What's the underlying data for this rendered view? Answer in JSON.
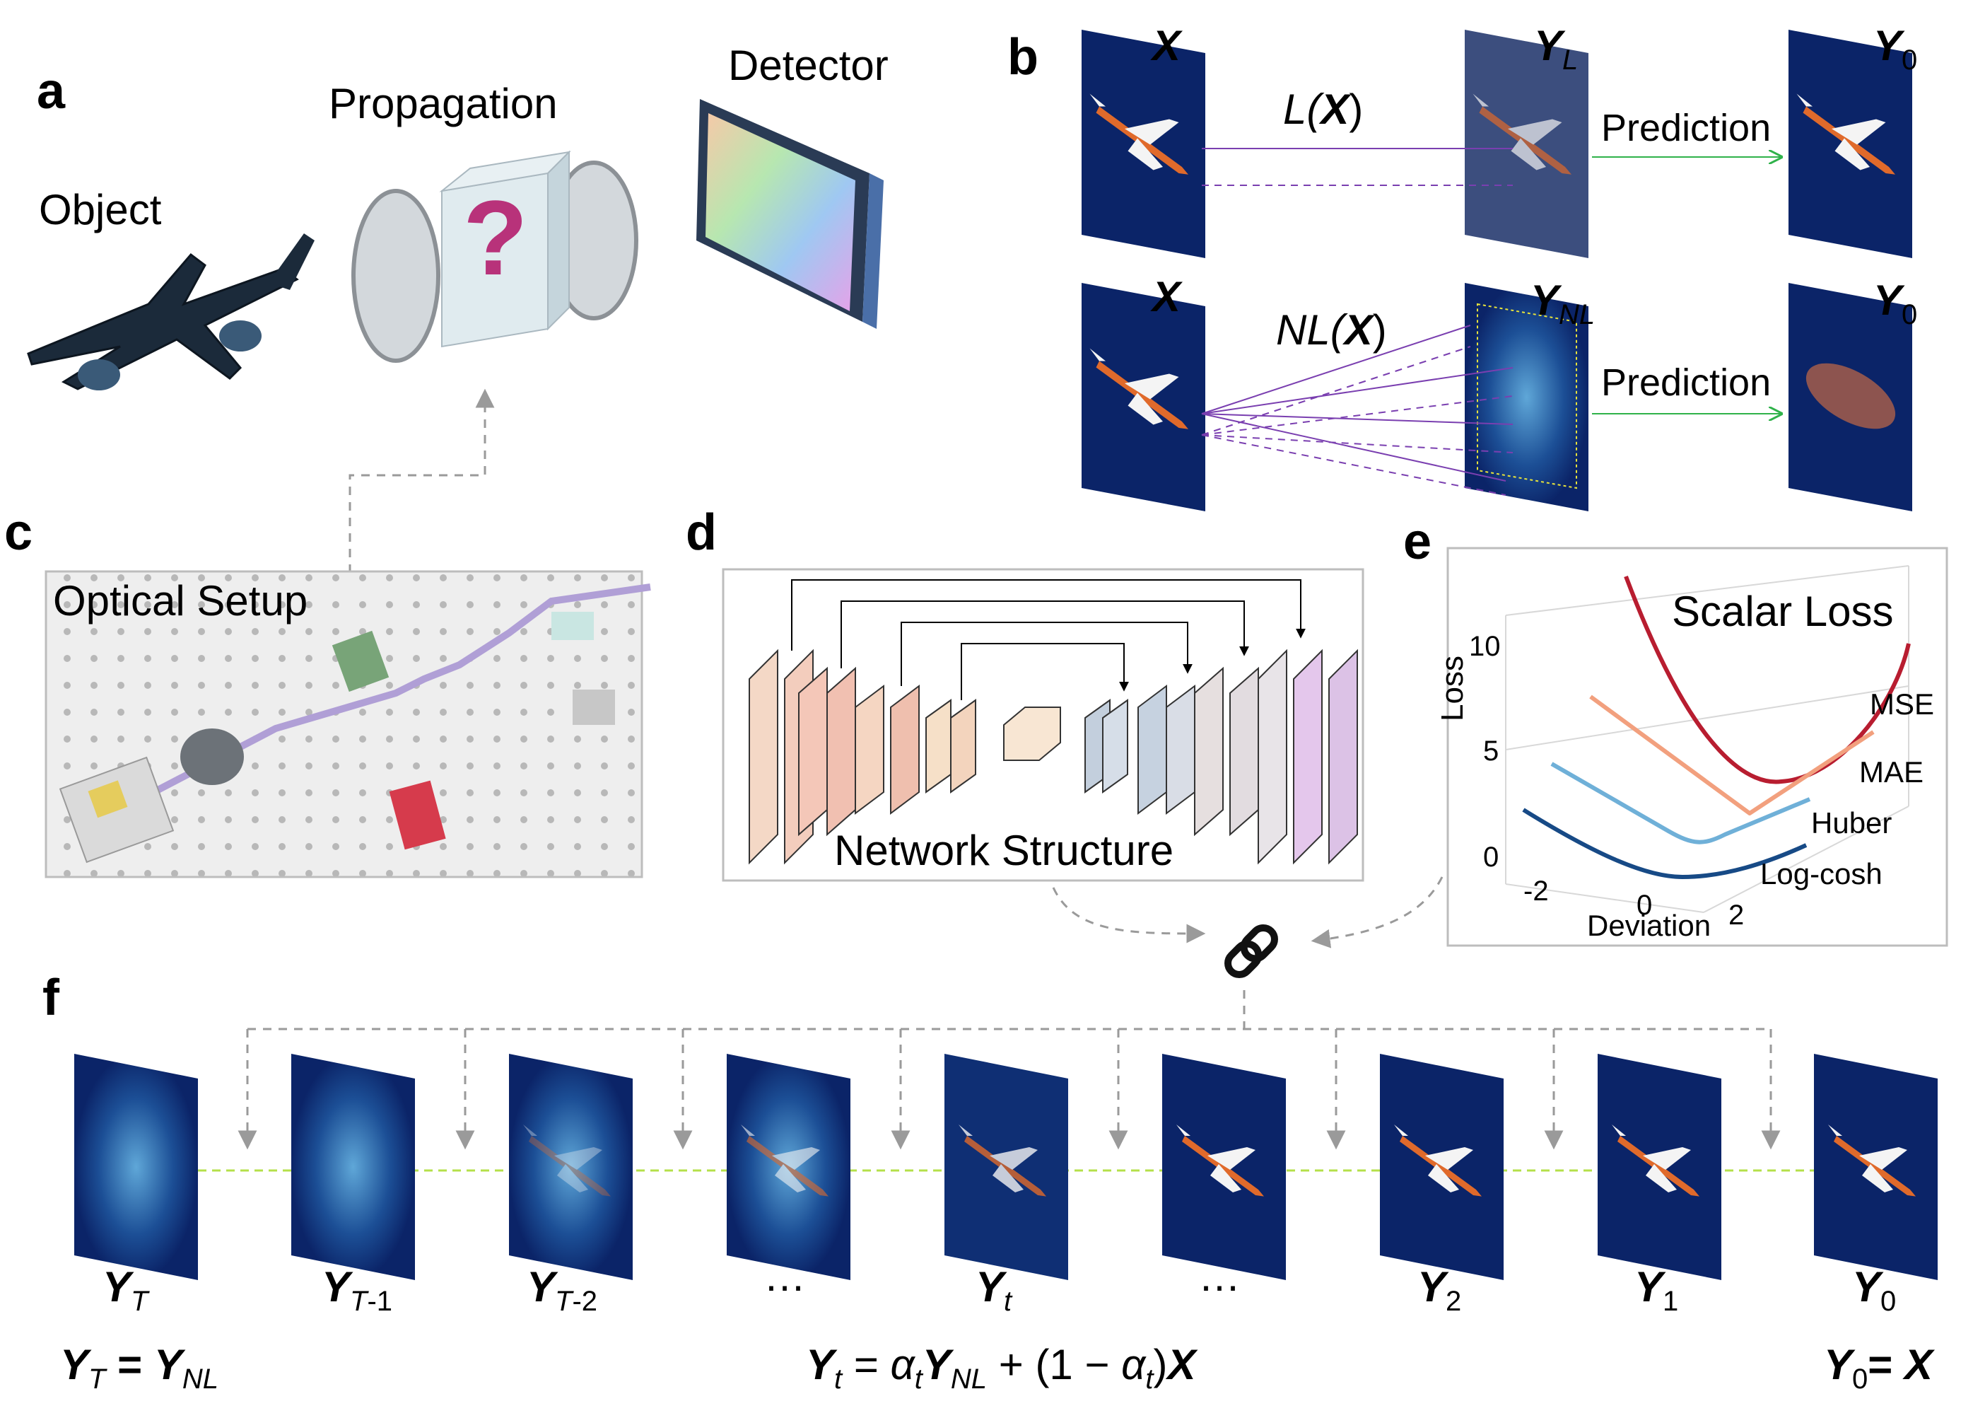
{
  "panels": {
    "a": {
      "label": "a",
      "object_text": "Object",
      "propagation_text": "Propagation",
      "propagation_symbol": "?",
      "detector_text": "Detector"
    },
    "b": {
      "label": "b",
      "row1": {
        "input": "X",
        "output": "Y",
        "output_sub": "L",
        "pred": "Y",
        "pred_sub": "0",
        "op_func": "L(",
        "op_var": "X",
        "op_close": ")",
        "arrow_text": "Prediction"
      },
      "row2": {
        "input": "X",
        "output": "Y",
        "output_sub": "NL",
        "pred": "Y",
        "pred_sub": "0",
        "op_func": "NL(",
        "op_var": "X",
        "op_close": ")",
        "arrow_text": "Prediction"
      }
    },
    "c": {
      "label": "c",
      "title": "Optical Setup"
    },
    "d": {
      "label": "d",
      "title": "Network Structure"
    },
    "e": {
      "label": "e",
      "title": "Scalar Loss",
      "ylabel": "Loss",
      "xlabel": "Deviation",
      "yticks": [
        "10",
        "5",
        "0"
      ],
      "xticks": [
        "-2",
        "0",
        "2"
      ],
      "legend": [
        "MSE",
        "MAE",
        "Huber",
        "Log-cosh"
      ]
    },
    "f": {
      "label": "f",
      "frames": [
        {
          "base": "Y",
          "sub": "T",
          "upright": false
        },
        {
          "base": "Y",
          "sub": "T",
          "sub2": "-1"
        },
        {
          "base": "Y",
          "sub": "T",
          "sub2": "-2"
        },
        {
          "ellipsis": "…"
        },
        {
          "base": "Y",
          "sub": "t"
        },
        {
          "ellipsis": "…"
        },
        {
          "base": "Y",
          "sub2": "2"
        },
        {
          "base": "Y",
          "sub2": "1"
        },
        {
          "base": "Y",
          "sub2": "0"
        }
      ],
      "eq_left": {
        "a": "Y",
        "a_sub": "T",
        "eq": " = ",
        "b": "Y",
        "b_sub": "NL"
      },
      "eq_mid": {
        "a": "Y",
        "a_sub": "t",
        "eq": " = ",
        "alpha": "α",
        "alpha_sub": "t",
        "b": "Y",
        "b_sub": "NL",
        "plus": " + (1 − ",
        "alpha2": "α",
        "alpha2_sub": "t",
        "close": ")",
        "x": "X"
      },
      "eq_right": {
        "a": "Y",
        "a_sub": "0",
        "eq": "= ",
        "b": "X"
      }
    }
  },
  "colors": {
    "navy": "#0b2468",
    "plane_orange": "#d9622b",
    "pred_arrow": "#2fb24a",
    "solid_line": "#7a3fb0",
    "dash_green": "#b5e04a",
    "mse": "#b81d30",
    "mae": "#f2a07e",
    "huber": "#6fb0d8",
    "logcosh": "#174a86",
    "gray_dash": "#9a9a9a"
  },
  "icons": [
    "airplane-icon",
    "lens-icon",
    "question-mark-icon",
    "detector-icon",
    "chain-link-icon"
  ]
}
